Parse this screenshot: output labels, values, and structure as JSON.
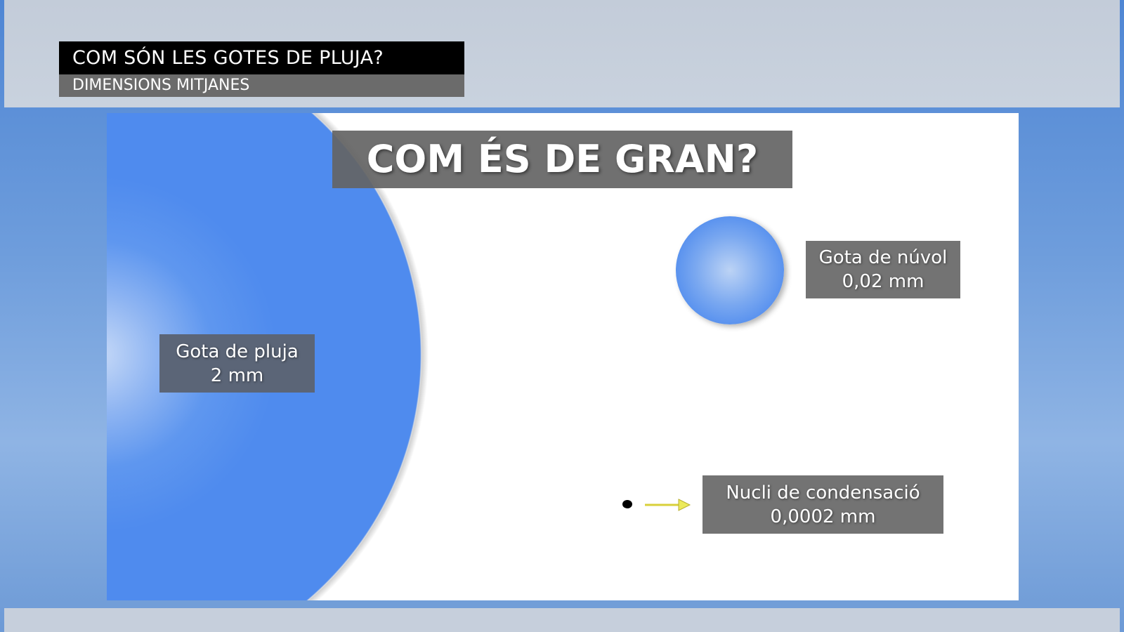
{
  "header": {
    "title": "COM SÓN LES GOTES DE PLUJA?",
    "subtitle": "DIMENSIONS MITJANES"
  },
  "panel": {
    "heading": "COM ÉS DE GRAN?",
    "items": [
      {
        "name": "Gota de pluja",
        "size": "2 mm"
      },
      {
        "name": "Gota de núvol",
        "size": "0,02 mm"
      },
      {
        "name": "Nucli de condensació",
        "size": "0,0002 mm"
      }
    ]
  },
  "colors": {
    "drop": "#4f8bee",
    "arrow": "#e8e04a",
    "panel": "#ffffff"
  }
}
